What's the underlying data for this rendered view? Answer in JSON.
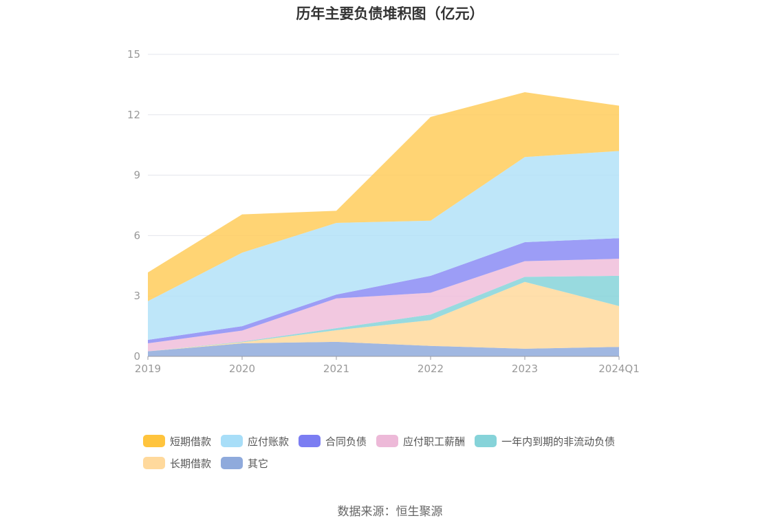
{
  "chart_data": {
    "type": "area",
    "stacked": true,
    "title": "历年主要负债堆积图（亿元）",
    "source": "数据来源：恒生聚源",
    "x": [
      "2019",
      "2020",
      "2021",
      "2022",
      "2023",
      "2024Q1"
    ],
    "ylim": [
      0,
      15
    ],
    "yticks": [
      0,
      3,
      6,
      9,
      12,
      15
    ],
    "series": [
      {
        "name": "其它",
        "color": "#8FAADC",
        "values": [
          0.25,
          0.65,
          0.72,
          0.52,
          0.38,
          0.47
        ]
      },
      {
        "name": "长期借款",
        "color": "#FFD99C",
        "values": [
          0.0,
          0.05,
          0.58,
          1.28,
          3.32,
          2.03
        ]
      },
      {
        "name": "一年内到期的非流动负债",
        "color": "#86D3D9",
        "values": [
          0.0,
          0.03,
          0.1,
          0.28,
          0.25,
          1.5
        ]
      },
      {
        "name": "应付职工薪酬",
        "color": "#F0BEDB",
        "values": [
          0.4,
          0.55,
          1.48,
          1.08,
          0.78,
          0.85
        ]
      },
      {
        "name": "合同负债",
        "color": "#8B8CF5",
        "values": [
          0.17,
          0.22,
          0.19,
          0.84,
          0.94,
          1.02
        ]
      },
      {
        "name": "应付账款",
        "color": "#B3E2F8",
        "values": [
          1.92,
          3.65,
          3.56,
          2.74,
          4.23,
          4.33
        ]
      },
      {
        "name": "短期借款",
        "color": "#FFCC5C",
        "values": [
          1.43,
          1.9,
          0.6,
          5.15,
          3.22,
          2.25
        ]
      }
    ],
    "legend": [
      {
        "name": "短期借款",
        "color": "#FFC43D"
      },
      {
        "name": "应付账款",
        "color": "#A8DEF8"
      },
      {
        "name": "合同负债",
        "color": "#7B7DF2"
      },
      {
        "name": "应付职工薪酬",
        "color": "#EDB9D8"
      },
      {
        "name": "一年内到期的非流动负债",
        "color": "#86D3D9"
      },
      {
        "name": "长期借款",
        "color": "#FFD99C"
      },
      {
        "name": "其它",
        "color": "#8FAADC"
      }
    ]
  }
}
